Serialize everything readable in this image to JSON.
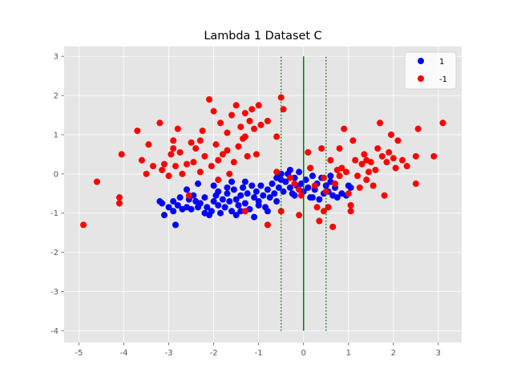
{
  "chart_data": {
    "type": "scatter",
    "title": "Lambda 1 Dataset C",
    "xlabel": "",
    "ylabel": "",
    "xlim": [
      -5.33,
      3.52
    ],
    "ylim": [
      -4.3,
      3.25
    ],
    "xticks": [
      -5,
      -4,
      -3,
      -2,
      -1,
      0,
      1,
      2,
      3
    ],
    "yticks": [
      -4,
      -3,
      -2,
      -1,
      0,
      1,
      2,
      3
    ],
    "grid": true,
    "legend_position": "top-right",
    "series": [
      {
        "name": "1",
        "color": "#0000ff",
        "points": [
          [
            -3.2,
            -0.7
          ],
          [
            -3.15,
            -0.75
          ],
          [
            -3.1,
            -1.05
          ],
          [
            -3.0,
            -0.85
          ],
          [
            -2.9,
            -0.95
          ],
          [
            -2.85,
            -1.3
          ],
          [
            -2.8,
            -0.8
          ],
          [
            -2.75,
            -0.6
          ],
          [
            -2.7,
            -0.9
          ],
          [
            -2.6,
            -0.85
          ],
          [
            -2.5,
            -0.9
          ],
          [
            -2.45,
            -0.55
          ],
          [
            -2.4,
            -0.7
          ],
          [
            -2.35,
            -0.85
          ],
          [
            -2.3,
            -0.75
          ],
          [
            -2.2,
            -0.6
          ],
          [
            -2.15,
            -0.85
          ],
          [
            -2.1,
            -1.05
          ],
          [
            -2.05,
            -0.95
          ],
          [
            -2.0,
            -0.7
          ],
          [
            -1.95,
            -0.55
          ],
          [
            -1.9,
            -0.8
          ],
          [
            -1.85,
            -1.0
          ],
          [
            -1.8,
            -0.65
          ],
          [
            -1.75,
            -0.85
          ],
          [
            -1.7,
            -0.5
          ],
          [
            -1.65,
            -0.7
          ],
          [
            -1.6,
            -0.95
          ],
          [
            -1.55,
            -0.4
          ],
          [
            -1.5,
            -0.65
          ],
          [
            -1.45,
            -0.8
          ],
          [
            -1.4,
            -0.55
          ],
          [
            -1.35,
            -0.35
          ],
          [
            -1.3,
            -0.75
          ],
          [
            -1.25,
            -0.5
          ],
          [
            -1.2,
            -0.9
          ],
          [
            -1.15,
            -0.3
          ],
          [
            -1.1,
            -0.6
          ],
          [
            -1.05,
            -0.45
          ],
          [
            -1.0,
            -0.7
          ],
          [
            -0.95,
            -0.3
          ],
          [
            -0.9,
            -0.55
          ],
          [
            -0.85,
            -0.85
          ],
          [
            -0.8,
            -0.4
          ],
          [
            -0.75,
            -0.6
          ],
          [
            -0.7,
            -0.25
          ],
          [
            -0.65,
            -0.5
          ],
          [
            -0.6,
            -0.7
          ],
          [
            -0.55,
            -0.35
          ],
          [
            -0.5,
            -0.15
          ],
          [
            -0.45,
            -0.45
          ],
          [
            -0.4,
            -0.2
          ],
          [
            -0.35,
            0.0
          ],
          [
            -0.3,
            -0.35
          ],
          [
            -0.25,
            -0.5
          ],
          [
            -0.2,
            -0.1
          ],
          [
            -0.15,
            -0.3
          ],
          [
            -0.1,
            0.05
          ],
          [
            -0.05,
            -0.25
          ],
          [
            0.0,
            -0.45
          ],
          [
            0.05,
            -0.15
          ],
          [
            0.1,
            -0.35
          ],
          [
            0.15,
            -0.6
          ],
          [
            0.2,
            -0.05
          ],
          [
            0.25,
            -0.4
          ],
          [
            0.3,
            -0.25
          ],
          [
            0.35,
            -0.65
          ],
          [
            0.4,
            -0.1
          ],
          [
            0.45,
            -0.5
          ],
          [
            0.5,
            -0.3
          ],
          [
            0.55,
            -0.45
          ],
          [
            0.6,
            -0.2
          ],
          [
            0.65,
            -0.55
          ],
          [
            0.7,
            -0.35
          ],
          [
            0.75,
            -0.6
          ],
          [
            0.85,
            -0.5
          ],
          [
            1.0,
            -0.3
          ],
          [
            1.05,
            -0.35
          ],
          [
            0.95,
            -0.55
          ],
          [
            -0.5,
            0.0
          ],
          [
            -1.6,
            -0.2
          ],
          [
            -1.4,
            -0.95
          ],
          [
            -2.0,
            -0.3
          ],
          [
            -2.6,
            -0.4
          ],
          [
            -0.8,
            -0.95
          ],
          [
            -1.0,
            -0.8
          ],
          [
            -1.1,
            -1.1
          ],
          [
            -1.5,
            -1.05
          ],
          [
            -1.7,
            -0.35
          ],
          [
            -2.2,
            -1.0
          ],
          [
            -2.35,
            -0.25
          ],
          [
            -2.55,
            -0.65
          ],
          [
            -2.9,
            -0.7
          ],
          [
            -1.3,
            -0.2
          ],
          [
            -0.6,
            -0.1
          ],
          [
            -0.3,
            0.1
          ],
          [
            0.2,
            -0.6
          ],
          [
            0.6,
            -0.05
          ],
          [
            -0.2,
            -0.55
          ],
          [
            -1.9,
            -0.45
          ]
        ]
      },
      {
        "name": "-1",
        "color": "#ff0000",
        "points": [
          [
            -4.9,
            -1.3
          ],
          [
            -4.6,
            -0.2
          ],
          [
            -4.1,
            -0.75
          ],
          [
            -4.05,
            0.5
          ],
          [
            -4.1,
            -0.6
          ],
          [
            -3.7,
            1.1
          ],
          [
            -3.6,
            0.35
          ],
          [
            -3.45,
            0.75
          ],
          [
            -3.35,
            0.2
          ],
          [
            -3.2,
            1.3
          ],
          [
            -3.15,
            0.1
          ],
          [
            -3.1,
            0.25
          ],
          [
            -3.0,
            -0.05
          ],
          [
            -2.95,
            0.5
          ],
          [
            -2.9,
            0.85
          ],
          [
            -2.85,
            0.2
          ],
          [
            -2.8,
            1.15
          ],
          [
            -2.75,
            0.55
          ],
          [
            -2.7,
            0.0
          ],
          [
            -2.6,
            0.25
          ],
          [
            -2.55,
            -0.55
          ],
          [
            -2.5,
            0.8
          ],
          [
            -2.45,
            0.3
          ],
          [
            -2.4,
            0.65
          ],
          [
            -2.3,
            0.05
          ],
          [
            -2.25,
            1.1
          ],
          [
            -2.2,
            0.45
          ],
          [
            -2.1,
            1.9
          ],
          [
            -2.05,
            0.2
          ],
          [
            -2.0,
            1.6
          ],
          [
            -1.95,
            0.75
          ],
          [
            -1.9,
            -0.15
          ],
          [
            -1.85,
            1.3
          ],
          [
            -1.8,
            0.5
          ],
          [
            -1.7,
            1.05
          ],
          [
            -1.65,
            0.0
          ],
          [
            -1.6,
            1.5
          ],
          [
            -1.55,
            0.3
          ],
          [
            -1.5,
            1.75
          ],
          [
            -1.45,
            0.7
          ],
          [
            -1.4,
            1.2
          ],
          [
            -1.35,
            0.9
          ],
          [
            -1.3,
            1.55
          ],
          [
            -1.25,
            0.45
          ],
          [
            -1.2,
            1.35
          ],
          [
            -1.15,
            1.65
          ],
          [
            -1.1,
            1.15
          ],
          [
            -1.05,
            0.5
          ],
          [
            -1.0,
            1.75
          ],
          [
            -0.95,
            1.25
          ],
          [
            -0.8,
            1.35
          ],
          [
            -0.6,
            0.05
          ],
          [
            -0.5,
            1.95
          ],
          [
            -0.45,
            1.65
          ],
          [
            -0.3,
            -0.1
          ],
          [
            -0.2,
            -0.25
          ],
          [
            -0.1,
            -1.05
          ],
          [
            -0.05,
            -0.55
          ],
          [
            0.1,
            0.55
          ],
          [
            0.15,
            0.15
          ],
          [
            0.25,
            -0.3
          ],
          [
            0.3,
            -0.85
          ],
          [
            0.4,
            0.65
          ],
          [
            0.45,
            -0.1
          ],
          [
            0.5,
            -0.45
          ],
          [
            0.55,
            -0.85
          ],
          [
            0.6,
            0.35
          ],
          [
            0.65,
            -1.35
          ],
          [
            0.7,
            -0.25
          ],
          [
            0.75,
            0.1
          ],
          [
            0.8,
            -0.05
          ],
          [
            0.85,
            0.15
          ],
          [
            0.9,
            1.15
          ],
          [
            0.95,
            0.05
          ],
          [
            1.0,
            -0.5
          ],
          [
            1.05,
            -0.8
          ],
          [
            1.1,
            0.85
          ],
          [
            1.15,
            0.35
          ],
          [
            1.2,
            -0.05
          ],
          [
            1.25,
            -0.35
          ],
          [
            1.3,
            0.25
          ],
          [
            1.35,
            0.5
          ],
          [
            1.4,
            -0.15
          ],
          [
            1.45,
            0.05
          ],
          [
            1.5,
            0.3
          ],
          [
            1.55,
            -0.3
          ],
          [
            1.6,
            0.1
          ],
          [
            1.65,
            0.65
          ],
          [
            1.7,
            1.3
          ],
          [
            1.75,
            0.45
          ],
          [
            1.8,
            -0.55
          ],
          [
            1.85,
            0.3
          ],
          [
            1.9,
            0.55
          ],
          [
            1.95,
            1.0
          ],
          [
            2.0,
            0.4
          ],
          [
            2.05,
            0.15
          ],
          [
            2.1,
            0.85
          ],
          [
            2.2,
            0.35
          ],
          [
            2.3,
            0.2
          ],
          [
            2.5,
            0.45
          ],
          [
            2.55,
            1.15
          ],
          [
            2.9,
            0.45
          ],
          [
            3.1,
            1.3
          ],
          [
            2.5,
            -0.25
          ],
          [
            -1.3,
            -0.95
          ],
          [
            -0.8,
            -1.3
          ],
          [
            -0.5,
            -0.95
          ],
          [
            -0.1,
            -0.4
          ],
          [
            0.35,
            -1.2
          ],
          [
            0.45,
            -0.95
          ],
          [
            1.05,
            -0.95
          ],
          [
            -3.5,
            0.0
          ],
          [
            -2.9,
            0.65
          ],
          [
            -1.9,
            0.35
          ],
          [
            -1.3,
            0.95
          ],
          [
            -0.6,
            0.95
          ],
          [
            -2.3,
            0.85
          ],
          [
            -1.7,
            0.6
          ],
          [
            0.8,
            0.65
          ],
          [
            1.4,
            0.35
          ]
        ]
      }
    ],
    "lines": [
      {
        "x": 0,
        "y": [
          -4.0,
          3.0
        ],
        "color": "#008000",
        "style": "solid"
      },
      {
        "x": -0.5,
        "y": [
          -4.0,
          3.0
        ],
        "color": "#008000",
        "style": "dotted"
      },
      {
        "x": 0.5,
        "y": [
          -4.0,
          3.0
        ],
        "color": "#008000",
        "style": "dotted"
      }
    ]
  }
}
